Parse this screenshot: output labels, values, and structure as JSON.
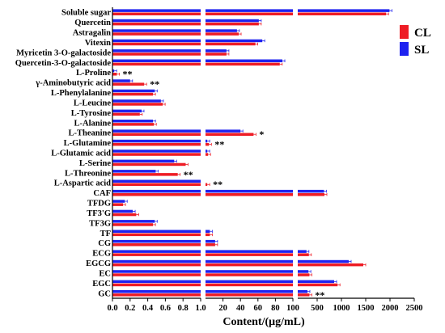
{
  "chart_data": {
    "type": "bar",
    "orientation": "horizontal",
    "xlabel": "Content/(μg/mL)",
    "x_ticks": [
      "0.0",
      "0.2",
      "0.4",
      "0.6",
      "0.8",
      "1.0",
      "20",
      "40",
      "60",
      "80",
      "100",
      "500",
      "1000",
      "1500",
      "2000",
      "2500"
    ],
    "x_segments": [
      {
        "range": [
          0,
          1.0
        ],
        "ticks": [
          0.0,
          0.2,
          0.4,
          0.6,
          0.8,
          1.0
        ]
      },
      {
        "range": [
          0,
          100
        ],
        "ticks": [
          20,
          40,
          60,
          80,
          100
        ]
      },
      {
        "range": [
          100,
          2500
        ],
        "ticks": [
          500,
          1000,
          1500,
          2000,
          2500
        ]
      }
    ],
    "grid": false,
    "legend_position": "top-right",
    "categories": [
      "Soluble sugar",
      "Quercetin",
      "Astragalin",
      "Vitexin",
      "Myricetin 3-O-galactoside",
      "Quercetin-3-O-galactoside",
      "L-Proline",
      "γ-Aminobutyric acid",
      "L-Phenylalanine",
      "L-Leucine",
      "L-Tyrosine",
      "L-Alanine",
      "L-Theanine",
      "L-Glutamine",
      "L-Glutamic acid",
      "L-Serine",
      "L-Threonine",
      "L-Aspartic acid",
      "CAF",
      "TFDG",
      "TF3'G",
      "TF3G",
      "TF",
      "CG",
      "ECG",
      "EGCG",
      "EC",
      "EGC",
      "GC"
    ],
    "series": [
      {
        "name": "CL",
        "color": "#ee1c25",
        "values": [
          1920,
          61,
          38,
          57,
          24,
          85,
          0.05,
          0.36,
          0.46,
          0.57,
          0.31,
          0.47,
          55,
          4,
          3,
          0.83,
          0.74,
          2,
          650,
          0.12,
          0.27,
          0.46,
          5,
          11,
          330,
          1450,
          340,
          920,
          340
        ]
      },
      {
        "name": "SL",
        "color": "#1e22f0",
        "values": [
          1990,
          61,
          36,
          65,
          24,
          88,
          0.02,
          0.2,
          0.48,
          0.55,
          0.33,
          0.46,
          40,
          2,
          2,
          0.7,
          0.49,
          1,
          640,
          0.14,
          0.23,
          0.48,
          5,
          11,
          280,
          1150,
          320,
          850,
          300
        ]
      }
    ],
    "significance": [
      {
        "category": "L-Proline",
        "mark": "**"
      },
      {
        "category": "γ-Aminobutyric acid",
        "mark": "**"
      },
      {
        "category": "L-Theanine",
        "mark": "*"
      },
      {
        "category": "L-Glutamine",
        "mark": "**"
      },
      {
        "category": "L-Threonine",
        "mark": "**"
      },
      {
        "category": "L-Aspartic acid",
        "mark": "**"
      },
      {
        "category": "GC",
        "mark": "**"
      }
    ]
  }
}
